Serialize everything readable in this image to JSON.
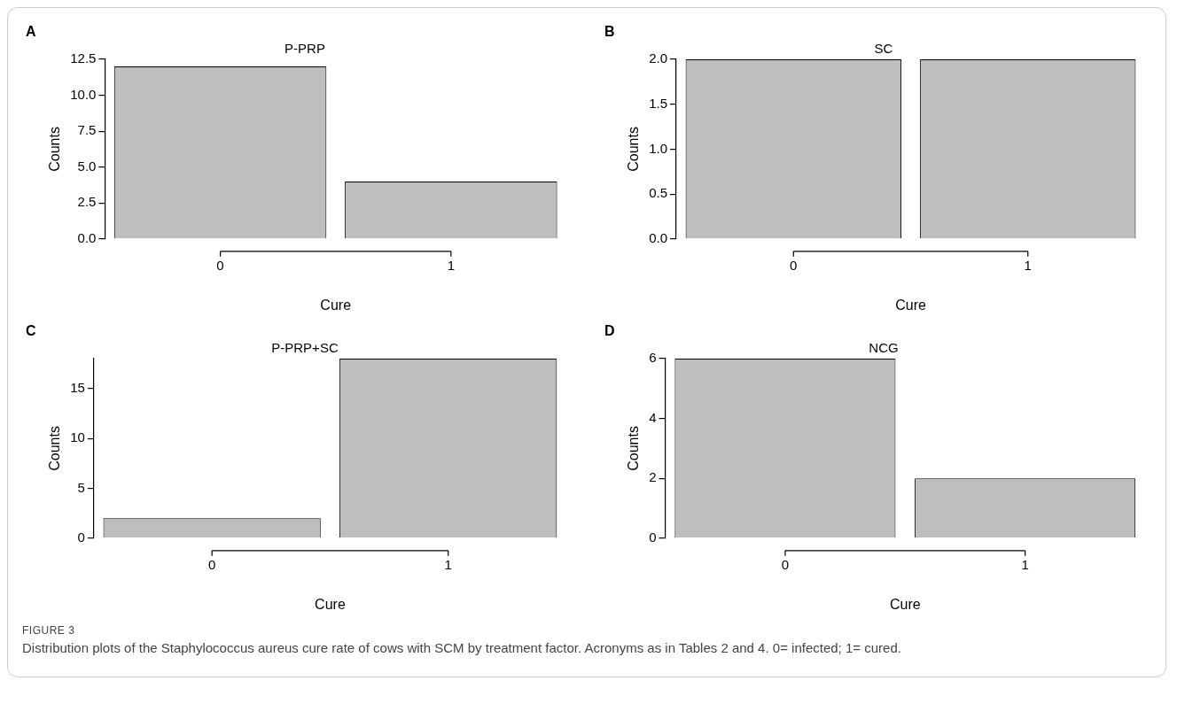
{
  "chart_data": [
    {
      "type": "bar",
      "title": "P-PRP",
      "annotations": [
        "A"
      ],
      "xlabel": "Cure",
      "ylabel": "Counts",
      "categories": [
        "0",
        "1"
      ],
      "values": [
        12,
        4
      ],
      "color": "#bebebe",
      "ylim": [
        0,
        12.5
      ],
      "yticks": [
        {
          "value": 0,
          "label": "0.0"
        },
        {
          "value": 2.5,
          "label": "2.5"
        },
        {
          "value": 5,
          "label": "5.0"
        },
        {
          "value": 7.5,
          "label": "7.5"
        },
        {
          "value": 10,
          "label": "10.0"
        },
        {
          "value": 12.5,
          "label": "12.5"
        }
      ]
    },
    {
      "type": "bar",
      "title": "SC",
      "annotations": [
        "B"
      ],
      "xlabel": "Cure",
      "ylabel": "Counts",
      "categories": [
        "0",
        "1"
      ],
      "values": [
        2,
        2
      ],
      "color": "#bebebe",
      "ylim": [
        0,
        2
      ],
      "yticks": [
        {
          "value": 0,
          "label": "0.0"
        },
        {
          "value": 0.5,
          "label": "0.5"
        },
        {
          "value": 1,
          "label": "1.0"
        },
        {
          "value": 1.5,
          "label": "1.5"
        },
        {
          "value": 2,
          "label": "2.0"
        }
      ]
    },
    {
      "type": "bar",
      "title": "P-PRP+SC",
      "annotations": [
        "C"
      ],
      "xlabel": "Cure",
      "ylabel": "Counts",
      "categories": [
        "0",
        "1"
      ],
      "values": [
        2,
        18
      ],
      "color": "#bebebe",
      "ylim": [
        0,
        18
      ],
      "yticks": [
        0,
        5,
        10,
        15
      ]
    },
    {
      "type": "bar",
      "title": "NCG",
      "annotations": [
        "D"
      ],
      "xlabel": "Cure",
      "ylabel": "Counts",
      "categories": [
        "0",
        "1"
      ],
      "values": [
        6,
        2
      ],
      "color": "#bebebe",
      "ylim": [
        0,
        6
      ],
      "yticks": [
        0,
        2,
        4,
        6
      ]
    },
    {
      "type": "other",
      "title": "FIGURE 3",
      "annotations": [
        "Distribution plots of the Staphylococcus aureus cure rate of cows with SCM by treatment factor. Acronyms as in Tables 2 and 4. 0= infected; 1= cured."
      ]
    }
  ]
}
